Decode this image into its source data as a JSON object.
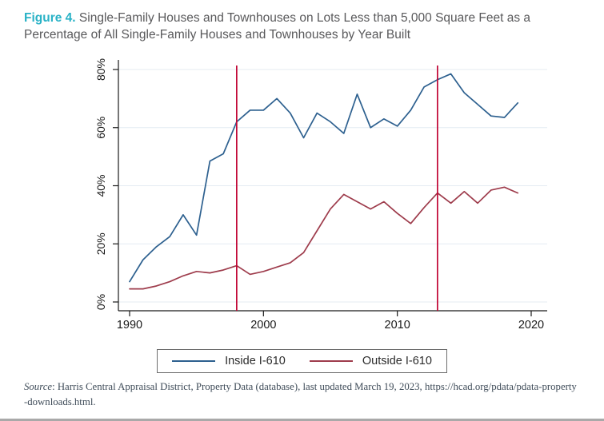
{
  "figure": {
    "label": "Figure 4.",
    "title_part1": " Single-Family Houses and Townhouses on Lots Less than 5,000 Square Feet as a",
    "title_part2": "Percentage of All Single-Family Houses and Townhouses by Year Built"
  },
  "chart_data": {
    "type": "line",
    "x": [
      1990,
      1991,
      1992,
      1993,
      1994,
      1995,
      1996,
      1997,
      1998,
      1999,
      2000,
      2001,
      2002,
      2003,
      2004,
      2005,
      2006,
      2007,
      2008,
      2009,
      2010,
      2011,
      2012,
      2013,
      2014,
      2015,
      2016,
      2017,
      2018,
      2019
    ],
    "series": [
      {
        "name": "Inside I-610",
        "color": "#2d608f",
        "values": [
          7,
          14.5,
          19,
          22.5,
          30,
          23,
          48.5,
          51,
          62,
          66,
          66,
          70,
          65,
          56.5,
          65,
          62,
          58,
          71.5,
          60,
          63,
          60.5,
          66,
          74,
          76.5,
          78.5,
          72,
          68,
          64,
          63.5,
          68.5
        ]
      },
      {
        "name": "Outside I-610",
        "color": "#9e3c4c",
        "values": [
          4.5,
          4.5,
          5.5,
          7,
          9,
          10.5,
          10,
          11,
          12.5,
          9.5,
          10.5,
          12,
          13.5,
          17,
          24.5,
          32,
          37,
          34.5,
          32,
          34.5,
          30.5,
          27,
          32.5,
          37.5,
          34,
          38,
          34,
          38.5,
          39.5,
          37.5
        ]
      }
    ],
    "reference_lines": {
      "vertical_x": [
        1998,
        2013
      ],
      "color": "#c10534"
    },
    "x_ticks": [
      1990,
      2000,
      2010,
      2020
    ],
    "y_ticks": [
      0,
      20,
      40,
      60,
      80
    ],
    "y_tick_labels": [
      "0%",
      "20%",
      "40%",
      "60%",
      "80%"
    ],
    "xlim": [
      1990,
      2020
    ],
    "ylim": [
      0,
      80
    ],
    "grid": "horizontal",
    "legend_position": "bottom-center",
    "colors": {
      "grid": "#e4ebf2",
      "axis": "#1a1a1a",
      "tick_text": "#1a1a1a"
    }
  },
  "source": {
    "label_italic": "Source",
    "line1_rest": ": Harris Central Appraisal District, Property Data (database), last updated March 19, 2023, https://hcad.org/pdata/pdata-property",
    "line2": "-downloads.html."
  }
}
